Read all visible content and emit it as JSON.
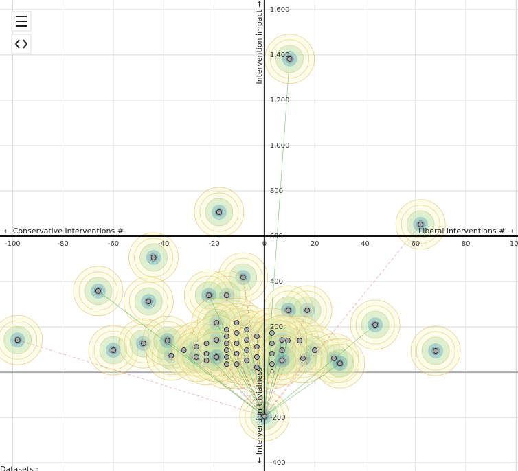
{
  "chart_data": {
    "type": "scatter",
    "x_label_left": "← Conservative interventions #",
    "x_label_right": "Liberal interventions # →",
    "y_label_top": "Intervention impact →",
    "y_label_bottom": "← Intervention trivialness",
    "footer": "Datasets :",
    "x": [
      10,
      -18,
      62,
      -44,
      -66,
      -46,
      -98,
      -60,
      44,
      68,
      -8.5,
      -15,
      -22,
      -48,
      17,
      9.5,
      9.3,
      14,
      20,
      27.6,
      30,
      15.3,
      -32,
      -37,
      -38.5,
      -15,
      -15,
      -15,
      -15,
      -15,
      -15,
      -11,
      -11,
      -11,
      -11,
      -11,
      -7,
      -7,
      -7,
      -7,
      -3,
      -3,
      -3,
      -3,
      3,
      3,
      3,
      3,
      7,
      7,
      7,
      -23,
      -23,
      -23,
      -27,
      -27,
      -19,
      -19,
      -19,
      0
    ],
    "y": [
      1382,
      706,
      652,
      506,
      358,
      312,
      142,
      97,
      209,
      94,
      418,
      339,
      339,
      127,
      273,
      273,
      139,
      139,
      97,
      61,
      39,
      61,
      97,
      73,
      139,
      188,
      158,
      127,
      97,
      67,
      36,
      218,
      173,
      127,
      82,
      36,
      188,
      142,
      97,
      52,
      158,
      112,
      67,
      21,
      173,
      127,
      82,
      36,
      142,
      97,
      52,
      127,
      82,
      52,
      112,
      67,
      218,
      142,
      67,
      -195
    ],
    "color": "#a8a8a8",
    "xlim": [
      -105,
      100.7
    ],
    "ylim": [
      -436,
      1642
    ],
    "xticks": [
      -100,
      -80,
      -60,
      -40,
      -20,
      0,
      20,
      40,
      60,
      80,
      100
    ],
    "yticks": [
      {
        "value": 1600,
        "label": "1,600"
      },
      {
        "value": 1400,
        "label": "1,400"
      },
      {
        "value": 1200,
        "label": "1,200"
      },
      {
        "value": 1000,
        "label": "1,000"
      },
      800,
      600,
      400,
      200,
      0,
      -200,
      -400
    ],
    "x_axis_at": 600,
    "grid": true
  }
}
